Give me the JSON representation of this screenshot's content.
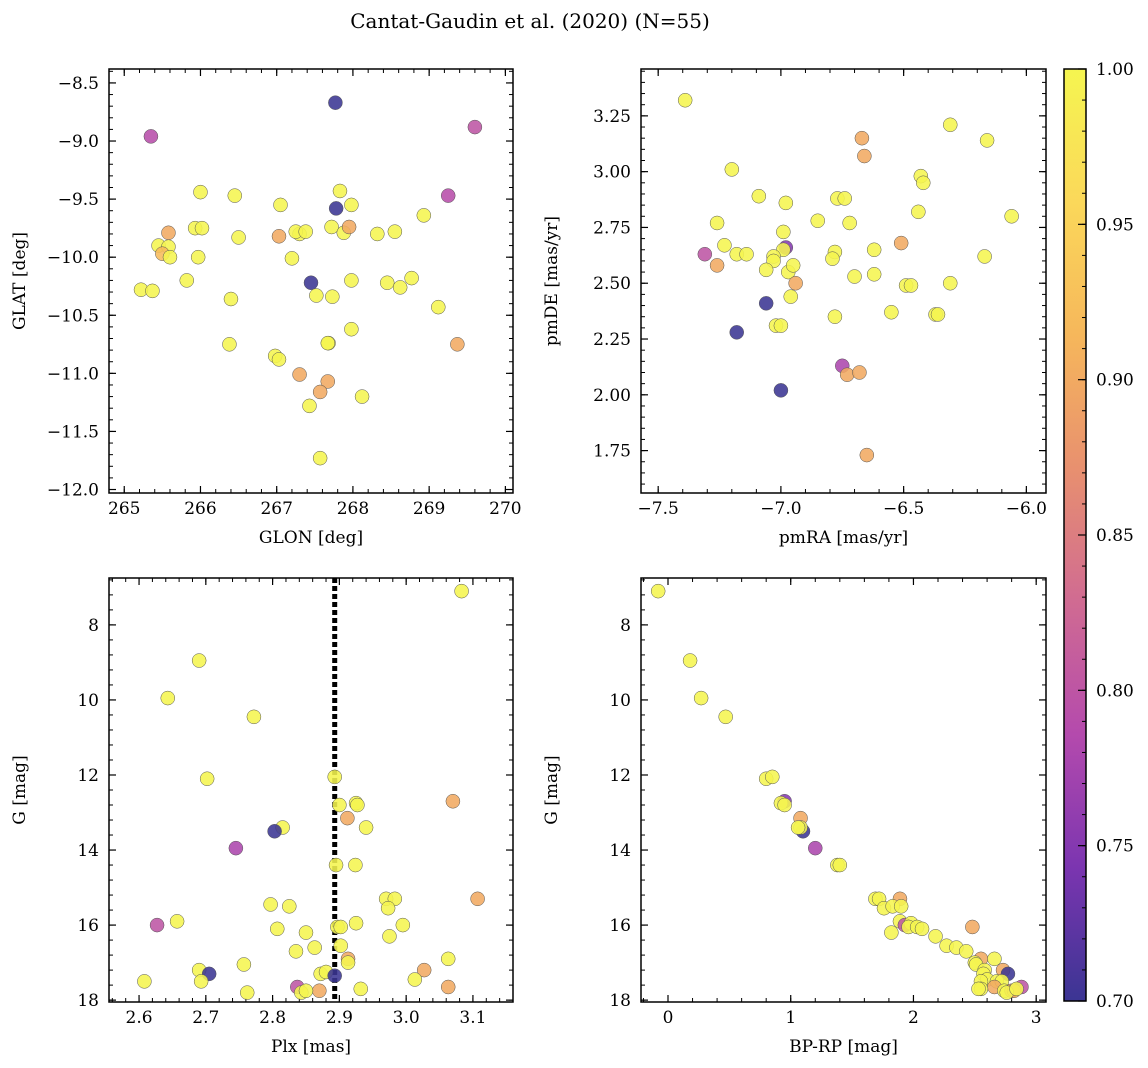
{
  "title": "Cantat-Gaudin et al. (2020) (N=55)",
  "chart_data": [
    {
      "type": "scatter",
      "panel": "top-left",
      "xlabel": "GLON [deg]",
      "ylabel": "GLAT [deg]",
      "xlim": [
        264.8,
        270.1
      ],
      "ylim": [
        -12.03,
        -8.38
      ],
      "xticks": [
        265,
        266,
        267,
        268,
        269,
        270
      ],
      "xtick_labels": [
        "265",
        "266",
        "267",
        "268",
        "269",
        "270"
      ],
      "yticks": [
        -8.5,
        -9.0,
        -9.5,
        -10.0,
        -10.5,
        -11.0,
        -11.5,
        -12.0
      ],
      "ytick_labels": [
        "−8.5",
        "−9.0",
        "−9.5",
        "−10.0",
        "−10.5",
        "−11.0",
        "−11.5",
        "−12.0"
      ],
      "points": [
        [
          267.77,
          -8.67,
          0.7
        ],
        [
          265.35,
          -8.96,
          0.79
        ],
        [
          269.6,
          -8.88,
          0.8
        ],
        [
          269.25,
          -9.47,
          0.79
        ],
        [
          267.78,
          -9.58,
          0.7
        ],
        [
          267.83,
          -9.43,
          1.0
        ],
        [
          267.98,
          -9.55,
          1.0
        ],
        [
          266.0,
          -9.44,
          1.0
        ],
        [
          266.45,
          -9.47,
          1.0
        ],
        [
          267.05,
          -9.55,
          1.0
        ],
        [
          265.93,
          -9.75,
          1.0
        ],
        [
          266.02,
          -9.75,
          1.0
        ],
        [
          266.5,
          -9.83,
          1.0
        ],
        [
          267.3,
          -9.8,
          1.0
        ],
        [
          267.25,
          -9.78,
          1.0
        ],
        [
          267.38,
          -9.78,
          1.0
        ],
        [
          267.72,
          -9.74,
          1.0
        ],
        [
          267.88,
          -9.79,
          1.0
        ],
        [
          267.95,
          -9.74,
          0.9
        ],
        [
          267.03,
          -9.82,
          0.9
        ],
        [
          268.32,
          -9.8,
          1.0
        ],
        [
          268.55,
          -9.78,
          1.0
        ],
        [
          268.93,
          -9.64,
          1.0
        ],
        [
          265.58,
          -9.79,
          0.9
        ],
        [
          265.45,
          -9.9,
          1.0
        ],
        [
          265.58,
          -9.91,
          1.0
        ],
        [
          265.5,
          -9.97,
          0.92
        ],
        [
          265.6,
          -10.0,
          1.0
        ],
        [
          265.97,
          -10.0,
          1.0
        ],
        [
          267.2,
          -10.01,
          1.0
        ],
        [
          265.22,
          -10.28,
          1.0
        ],
        [
          265.37,
          -10.29,
          1.0
        ],
        [
          265.82,
          -10.2,
          1.0
        ],
        [
          267.45,
          -10.22,
          0.7
        ],
        [
          267.98,
          -10.2,
          1.0
        ],
        [
          268.45,
          -10.22,
          1.0
        ],
        [
          268.62,
          -10.26,
          1.0
        ],
        [
          268.77,
          -10.18,
          1.0
        ],
        [
          266.4,
          -10.36,
          1.0
        ],
        [
          267.52,
          -10.33,
          1.0
        ],
        [
          267.73,
          -10.34,
          1.0
        ],
        [
          269.12,
          -10.43,
          1.0
        ],
        [
          267.98,
          -10.62,
          1.0
        ],
        [
          266.38,
          -10.75,
          1.0
        ],
        [
          267.68,
          -10.74,
          1.0
        ],
        [
          267.67,
          -10.74,
          1.0
        ],
        [
          269.37,
          -10.75,
          0.9
        ],
        [
          266.98,
          -10.85,
          1.0
        ],
        [
          267.03,
          -10.88,
          1.0
        ],
        [
          267.3,
          -11.01,
          0.9
        ],
        [
          267.67,
          -11.07,
          0.9
        ],
        [
          267.57,
          -11.16,
          0.9
        ],
        [
          268.12,
          -11.2,
          1.0
        ],
        [
          267.43,
          -11.28,
          1.0
        ],
        [
          267.57,
          -11.73,
          1.0
        ]
      ]
    },
    {
      "type": "scatter",
      "panel": "top-right",
      "xlabel": "pmRA [mas/yr]",
      "ylabel": "pmDE [mas/yr]",
      "xlim": [
        -7.57,
        -5.92
      ],
      "ylim": [
        1.56,
        3.46
      ],
      "xticks": [
        -7.5,
        -7.0,
        -6.5,
        -6.0
      ],
      "xtick_labels": [
        "−7.5",
        "−7.0",
        "−6.5",
        "−6.0"
      ],
      "yticks": [
        1.75,
        2.0,
        2.25,
        2.5,
        2.75,
        3.0,
        3.25
      ],
      "ytick_labels": [
        "1.75",
        "2.00",
        "2.25",
        "2.50",
        "2.75",
        "3.00",
        "3.25"
      ],
      "points": [
        [
          -7.39,
          3.32,
          1.0
        ],
        [
          -6.31,
          3.21,
          1.0
        ],
        [
          -6.16,
          3.14,
          1.0
        ],
        [
          -6.67,
          3.15,
          0.9
        ],
        [
          -6.66,
          3.07,
          0.9
        ],
        [
          -7.2,
          3.01,
          1.0
        ],
        [
          -6.43,
          2.98,
          1.0
        ],
        [
          -6.42,
          2.95,
          1.0
        ],
        [
          -7.09,
          2.89,
          1.0
        ],
        [
          -6.77,
          2.88,
          1.0
        ],
        [
          -6.74,
          2.88,
          1.0
        ],
        [
          -6.98,
          2.86,
          1.0
        ],
        [
          -6.44,
          2.82,
          1.0
        ],
        [
          -6.06,
          2.8,
          1.0
        ],
        [
          -7.26,
          2.77,
          1.0
        ],
        [
          -6.85,
          2.78,
          1.0
        ],
        [
          -6.72,
          2.77,
          1.0
        ],
        [
          -6.99,
          2.73,
          1.0
        ],
        [
          -7.23,
          2.67,
          1.0
        ],
        [
          -6.98,
          2.66,
          0.75
        ],
        [
          -6.99,
          2.65,
          1.0
        ],
        [
          -7.31,
          2.63,
          0.8
        ],
        [
          -7.18,
          2.63,
          1.0
        ],
        [
          -7.14,
          2.63,
          1.0
        ],
        [
          -6.78,
          2.64,
          1.0
        ],
        [
          -6.62,
          2.65,
          1.0
        ],
        [
          -7.03,
          2.62,
          1.0
        ],
        [
          -7.03,
          2.6,
          1.0
        ],
        [
          -6.79,
          2.61,
          1.0
        ],
        [
          -6.17,
          2.62,
          1.0
        ],
        [
          -7.26,
          2.58,
          0.9
        ],
        [
          -7.06,
          2.56,
          1.0
        ],
        [
          -6.51,
          2.68,
          0.9
        ],
        [
          -6.97,
          2.55,
          1.0
        ],
        [
          -6.62,
          2.54,
          1.0
        ],
        [
          -6.7,
          2.53,
          1.0
        ],
        [
          -6.49,
          2.49,
          1.0
        ],
        [
          -6.47,
          2.49,
          1.0
        ],
        [
          -6.31,
          2.5,
          1.0
        ],
        [
          -6.94,
          2.5,
          0.9
        ],
        [
          -6.96,
          2.44,
          1.0
        ],
        [
          -7.06,
          2.41,
          0.7
        ],
        [
          -6.55,
          2.37,
          1.0
        ],
        [
          -6.37,
          2.36,
          1.0
        ],
        [
          -6.36,
          2.36,
          1.0
        ],
        [
          -6.78,
          2.35,
          1.0
        ],
        [
          -7.02,
          2.31,
          1.0
        ],
        [
          -7.0,
          2.31,
          1.0
        ],
        [
          -7.18,
          2.28,
          0.7
        ],
        [
          -6.75,
          2.13,
          0.78
        ],
        [
          -6.73,
          2.09,
          0.9
        ],
        [
          -6.68,
          2.1,
          0.9
        ],
        [
          -7.0,
          2.02,
          0.7
        ],
        [
          -6.65,
          1.73,
          0.9
        ],
        [
          -6.95,
          2.58,
          1.0
        ]
      ]
    },
    {
      "type": "scatter",
      "panel": "bottom-left",
      "xlabel": "Plx [mas]",
      "ylabel": "G [mag]",
      "xlim": [
        2.555,
        3.16
      ],
      "ylim": [
        18.05,
        6.75
      ],
      "vline": 2.893,
      "xticks": [
        2.6,
        2.7,
        2.8,
        2.9,
        3.0,
        3.1
      ],
      "xtick_labels": [
        "2.6",
        "2.7",
        "2.8",
        "2.9",
        "3.0",
        "3.1"
      ],
      "yticks": [
        8,
        10,
        12,
        14,
        16,
        18
      ],
      "ytick_labels": [
        "8",
        "10",
        "12",
        "14",
        "16",
        "18"
      ],
      "points": [
        [
          3.083,
          7.1,
          1.0
        ],
        [
          2.69,
          8.95,
          1.0
        ],
        [
          2.643,
          9.95,
          1.0
        ],
        [
          2.772,
          10.45,
          1.0
        ],
        [
          2.702,
          12.1,
          1.0
        ],
        [
          2.893,
          12.05,
          1.0
        ],
        [
          2.9,
          12.8,
          1.0
        ],
        [
          2.925,
          12.75,
          1.0
        ],
        [
          2.927,
          12.8,
          1.0
        ],
        [
          3.07,
          12.7,
          0.9
        ],
        [
          2.912,
          13.15,
          0.9
        ],
        [
          2.94,
          13.4,
          1.0
        ],
        [
          2.815,
          13.4,
          1.0
        ],
        [
          2.803,
          13.5,
          0.7
        ],
        [
          2.745,
          13.95,
          0.78
        ],
        [
          2.924,
          14.4,
          1.0
        ],
        [
          2.895,
          14.4,
          1.0
        ],
        [
          2.97,
          15.3,
          1.0
        ],
        [
          2.983,
          15.3,
          1.0
        ],
        [
          3.107,
          15.3,
          0.9
        ],
        [
          2.797,
          15.45,
          1.0
        ],
        [
          2.825,
          15.5,
          1.0
        ],
        [
          2.973,
          15.55,
          1.0
        ],
        [
          2.657,
          15.9,
          1.0
        ],
        [
          2.925,
          15.95,
          1.0
        ],
        [
          2.627,
          16.0,
          0.8
        ],
        [
          2.897,
          16.05,
          1.0
        ],
        [
          2.902,
          16.05,
          1.0
        ],
        [
          2.995,
          16.0,
          1.0
        ],
        [
          2.807,
          16.1,
          1.0
        ],
        [
          2.85,
          16.2,
          1.0
        ],
        [
          2.975,
          16.3,
          1.0
        ],
        [
          2.902,
          16.55,
          1.0
        ],
        [
          2.863,
          16.6,
          1.0
        ],
        [
          2.835,
          16.7,
          1.0
        ],
        [
          2.913,
          16.9,
          0.9
        ],
        [
          3.063,
          16.9,
          1.0
        ],
        [
          2.913,
          17.0,
          1.0
        ],
        [
          2.757,
          17.05,
          1.0
        ],
        [
          2.69,
          17.2,
          1.0
        ],
        [
          3.027,
          17.2,
          0.9
        ],
        [
          2.705,
          17.3,
          0.7
        ],
        [
          2.872,
          17.3,
          1.0
        ],
        [
          2.88,
          17.25,
          1.0
        ],
        [
          2.893,
          17.35,
          0.7
        ],
        [
          2.608,
          17.5,
          1.0
        ],
        [
          2.693,
          17.5,
          1.0
        ],
        [
          3.013,
          17.45,
          1.0
        ],
        [
          2.837,
          17.65,
          0.8
        ],
        [
          3.063,
          17.65,
          0.9
        ],
        [
          2.932,
          17.7,
          1.0
        ],
        [
          2.87,
          17.75,
          0.9
        ],
        [
          2.762,
          17.8,
          1.0
        ],
        [
          2.843,
          17.8,
          1.0
        ],
        [
          2.85,
          17.75,
          1.0
        ]
      ]
    },
    {
      "type": "scatter",
      "panel": "bottom-right",
      "xlabel": "BP-RP [mag]",
      "ylabel": "G [mag]",
      "xlim": [
        -0.22,
        3.08
      ],
      "ylim": [
        18.05,
        6.75
      ],
      "xticks": [
        0,
        1,
        2,
        3
      ],
      "xtick_labels": [
        "0",
        "1",
        "2",
        "3"
      ],
      "yticks": [
        8,
        10,
        12,
        14,
        16,
        18
      ],
      "ytick_labels": [
        "8",
        "10",
        "12",
        "14",
        "16",
        "18"
      ],
      "points": [
        [
          -0.08,
          7.1,
          1.0
        ],
        [
          0.18,
          8.95,
          1.0
        ],
        [
          0.27,
          9.95,
          1.0
        ],
        [
          0.47,
          10.45,
          1.0
        ],
        [
          0.8,
          12.1,
          1.0
        ],
        [
          0.85,
          12.05,
          1.0
        ],
        [
          0.95,
          12.7,
          0.75
        ],
        [
          0.92,
          12.75,
          1.0
        ],
        [
          0.95,
          12.8,
          1.0
        ],
        [
          1.08,
          13.15,
          0.9
        ],
        [
          1.1,
          13.5,
          0.7
        ],
        [
          1.08,
          13.4,
          1.0
        ],
        [
          1.06,
          13.4,
          1.0
        ],
        [
          1.2,
          13.95,
          0.78
        ],
        [
          1.38,
          14.4,
          1.0
        ],
        [
          1.4,
          14.4,
          1.0
        ],
        [
          1.69,
          15.3,
          1.0
        ],
        [
          1.72,
          15.3,
          1.0
        ],
        [
          1.89,
          15.3,
          0.9
        ],
        [
          1.76,
          15.55,
          1.0
        ],
        [
          1.83,
          15.5,
          1.0
        ],
        [
          1.9,
          15.5,
          1.0
        ],
        [
          1.89,
          15.9,
          1.0
        ],
        [
          1.93,
          16.0,
          0.8
        ],
        [
          1.98,
          15.95,
          1.0
        ],
        [
          1.96,
          16.05,
          1.0
        ],
        [
          2.03,
          16.05,
          1.0
        ],
        [
          2.07,
          16.1,
          1.0
        ],
        [
          1.82,
          16.2,
          1.0
        ],
        [
          2.18,
          16.3,
          1.0
        ],
        [
          2.48,
          16.05,
          0.9
        ],
        [
          2.27,
          16.55,
          1.0
        ],
        [
          2.35,
          16.6,
          1.0
        ],
        [
          2.43,
          16.7,
          1.0
        ],
        [
          2.55,
          16.9,
          0.9
        ],
        [
          2.5,
          17.0,
          1.0
        ],
        [
          2.66,
          16.9,
          1.0
        ],
        [
          2.51,
          17.05,
          1.0
        ],
        [
          2.58,
          17.2,
          1.0
        ],
        [
          2.73,
          17.2,
          0.9
        ],
        [
          2.77,
          17.3,
          0.7
        ],
        [
          2.57,
          17.3,
          1.0
        ],
        [
          2.6,
          17.45,
          1.0
        ],
        [
          2.68,
          17.5,
          1.0
        ],
        [
          2.72,
          17.5,
          1.0
        ],
        [
          2.55,
          17.5,
          1.0
        ],
        [
          2.88,
          17.65,
          0.8
        ],
        [
          2.66,
          17.65,
          0.9
        ],
        [
          2.74,
          17.75,
          1.0
        ],
        [
          2.8,
          17.75,
          0.9
        ],
        [
          2.55,
          17.7,
          1.0
        ],
        [
          2.82,
          17.75,
          0.9
        ],
        [
          2.76,
          17.8,
          1.0
        ],
        [
          2.53,
          17.7,
          1.0
        ],
        [
          2.84,
          17.7,
          1.0
        ]
      ]
    }
  ],
  "colorbar": {
    "min": 0.7,
    "max": 1.0,
    "colormap": "plasma",
    "stops": [
      "#3b3593",
      "#7b35b0",
      "#b44aad",
      "#d06b92",
      "#e8906f",
      "#f6b75b",
      "#fbd85a",
      "#f5f550"
    ],
    "ticks": [
      0.7,
      0.75,
      0.8,
      0.85,
      0.9,
      0.95,
      1.0
    ],
    "tick_labels": [
      "0.70",
      "0.75",
      "0.80",
      "0.85",
      "0.90",
      "0.95",
      "1.00"
    ]
  }
}
